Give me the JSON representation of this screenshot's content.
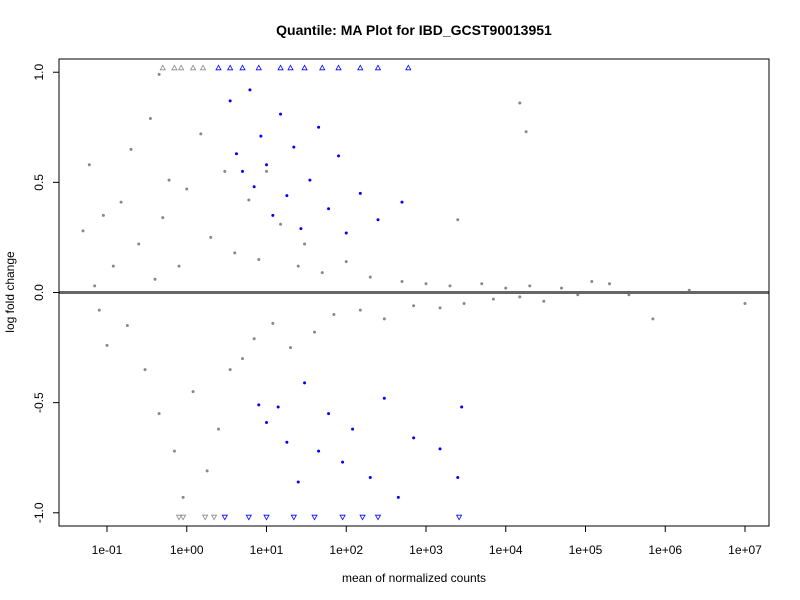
{
  "chart_data": {
    "type": "scatter",
    "title": "Quantile: MA Plot for IBD_GCST90013951",
    "xlabel": "mean of normalized counts",
    "ylabel": "log fold change",
    "x_scale": "log10",
    "xlim": [
      0.025,
      20000000
    ],
    "ylim": [
      -1.06,
      1.06
    ],
    "x_ticks": [
      0.1,
      1,
      10,
      100,
      1000,
      10000,
      100000,
      1000000,
      10000000
    ],
    "x_tick_labels": [
      "1e-01",
      "1e+00",
      "1e+01",
      "1e+02",
      "1e+03",
      "1e+04",
      "1e+05",
      "1e+06",
      "1e+07"
    ],
    "y_ticks": [
      -1.0,
      -0.5,
      0.0,
      0.5,
      1.0
    ],
    "y_tick_labels": [
      "-1.0",
      "-0.5",
      "0.0",
      "0.5",
      "1.0"
    ],
    "reference_line": {
      "y": 0,
      "color": "#666666"
    },
    "grid": false,
    "legend": "none",
    "colors": {
      "not_significant": "#888888",
      "significant": "#0000ff"
    },
    "series": [
      {
        "color": "#888888",
        "marker": "dot",
        "description_points": "sample of non-significant genes",
        "points": [
          [
            0.05,
            0.28
          ],
          [
            0.06,
            0.58
          ],
          [
            0.07,
            0.03
          ],
          [
            0.08,
            -0.08
          ],
          [
            0.09,
            0.35
          ],
          [
            0.1,
            -0.24
          ],
          [
            0.12,
            0.12
          ],
          [
            0.15,
            0.41
          ],
          [
            0.18,
            -0.15
          ],
          [
            0.2,
            0.65
          ],
          [
            0.25,
            0.22
          ],
          [
            0.3,
            -0.35
          ],
          [
            0.35,
            0.79
          ],
          [
            0.4,
            0.06
          ],
          [
            0.45,
            -0.55
          ],
          [
            0.5,
            0.34
          ],
          [
            0.6,
            0.51
          ],
          [
            0.7,
            -0.72
          ],
          [
            0.8,
            0.12
          ],
          [
            0.9,
            -0.93
          ],
          [
            1.0,
            0.47
          ],
          [
            1.2,
            -0.45
          ],
          [
            1.5,
            0.72
          ],
          [
            1.8,
            -0.81
          ],
          [
            2.0,
            0.25
          ],
          [
            2.5,
            -0.62
          ],
          [
            3.0,
            0.55
          ],
          [
            3.5,
            -0.35
          ],
          [
            4.0,
            0.18
          ],
          [
            5.0,
            -0.3
          ],
          [
            6.0,
            0.42
          ],
          [
            7.0,
            -0.21
          ],
          [
            8.0,
            0.15
          ],
          [
            10,
            0.55
          ],
          [
            12,
            -0.14
          ],
          [
            15,
            0.31
          ],
          [
            20,
            -0.25
          ],
          [
            25,
            0.12
          ],
          [
            30,
            0.22
          ],
          [
            40,
            -0.18
          ],
          [
            50,
            0.09
          ],
          [
            70,
            -0.1
          ],
          [
            100,
            0.14
          ],
          [
            150,
            -0.08
          ],
          [
            200,
            0.07
          ],
          [
            300,
            -0.12
          ],
          [
            500,
            0.05
          ],
          [
            700,
            -0.06
          ],
          [
            1000,
            0.04
          ],
          [
            1500,
            -0.07
          ],
          [
            2000,
            0.03
          ],
          [
            3000,
            -0.05
          ],
          [
            5000,
            0.04
          ],
          [
            7000,
            -0.03
          ],
          [
            10000,
            0.02
          ],
          [
            15000,
            -0.02
          ],
          [
            20000,
            0.03
          ],
          [
            30000,
            -0.04
          ],
          [
            50000,
            0.02
          ],
          [
            80000,
            -0.01
          ],
          [
            120000,
            0.05
          ],
          [
            200000,
            0.04
          ],
          [
            350000,
            -0.01
          ],
          [
            700000,
            -0.12
          ],
          [
            2000000,
            0.01
          ],
          [
            10000000,
            -0.05
          ],
          [
            0.45,
            0.99
          ],
          [
            15000,
            0.86
          ],
          [
            18000,
            0.73
          ],
          [
            2500,
            0.33
          ]
        ]
      },
      {
        "color": "#0000ff",
        "marker": "dot",
        "description_points": "sample of significant genes",
        "points": [
          [
            3.5,
            0.87
          ],
          [
            4.2,
            0.63
          ],
          [
            5.0,
            0.55
          ],
          [
            6.2,
            0.92
          ],
          [
            7.0,
            0.48
          ],
          [
            8.5,
            0.71
          ],
          [
            10,
            0.58
          ],
          [
            12,
            0.35
          ],
          [
            15,
            0.81
          ],
          [
            18,
            0.44
          ],
          [
            22,
            0.66
          ],
          [
            27,
            0.29
          ],
          [
            35,
            0.51
          ],
          [
            45,
            0.75
          ],
          [
            60,
            0.38
          ],
          [
            80,
            0.62
          ],
          [
            100,
            0.27
          ],
          [
            150,
            0.45
          ],
          [
            250,
            0.33
          ],
          [
            500,
            0.41
          ],
          [
            8,
            -0.51
          ],
          [
            10,
            -0.59
          ],
          [
            14,
            -0.52
          ],
          [
            18,
            -0.68
          ],
          [
            25,
            -0.86
          ],
          [
            30,
            -0.41
          ],
          [
            45,
            -0.72
          ],
          [
            60,
            -0.55
          ],
          [
            90,
            -0.77
          ],
          [
            120,
            -0.62
          ],
          [
            200,
            -0.84
          ],
          [
            300,
            -0.48
          ],
          [
            450,
            -0.93
          ],
          [
            700,
            -0.66
          ],
          [
            1500,
            -0.71
          ],
          [
            2500,
            -0.84
          ],
          [
            2800,
            -0.52
          ]
        ]
      },
      {
        "color": "#0000ff",
        "marker": "triangle-up",
        "description_points": "significant genes beyond upper y limit",
        "points": [
          [
            2.5,
            1.02
          ],
          [
            3.5,
            1.02
          ],
          [
            5,
            1.02
          ],
          [
            8,
            1.02
          ],
          [
            15,
            1.02
          ],
          [
            20,
            1.02
          ],
          [
            30,
            1.02
          ],
          [
            50,
            1.02
          ],
          [
            80,
            1.02
          ],
          [
            150,
            1.02
          ],
          [
            250,
            1.02
          ],
          [
            600,
            1.02
          ]
        ]
      },
      {
        "color": "#0000ff",
        "marker": "triangle-down",
        "description_points": "significant genes beyond lower y limit",
        "points": [
          [
            3,
            -1.02
          ],
          [
            6,
            -1.02
          ],
          [
            10,
            -1.02
          ],
          [
            22,
            -1.02
          ],
          [
            40,
            -1.02
          ],
          [
            90,
            -1.02
          ],
          [
            160,
            -1.02
          ],
          [
            250,
            -1.02
          ],
          [
            2600,
            -1.02
          ]
        ]
      },
      {
        "color": "#888888",
        "marker": "triangle-up",
        "description_points": "non-significant genes beyond upper y limit",
        "points": [
          [
            0.5,
            1.02
          ],
          [
            0.7,
            1.02
          ],
          [
            0.85,
            1.02
          ],
          [
            1.2,
            1.02
          ],
          [
            1.6,
            1.02
          ]
        ]
      },
      {
        "color": "#888888",
        "marker": "triangle-down",
        "description_points": "non-significant genes beyond lower y limit",
        "points": [
          [
            0.8,
            -1.02
          ],
          [
            0.9,
            -1.02
          ],
          [
            1.7,
            -1.02
          ],
          [
            2.2,
            -1.02
          ]
        ]
      }
    ]
  }
}
